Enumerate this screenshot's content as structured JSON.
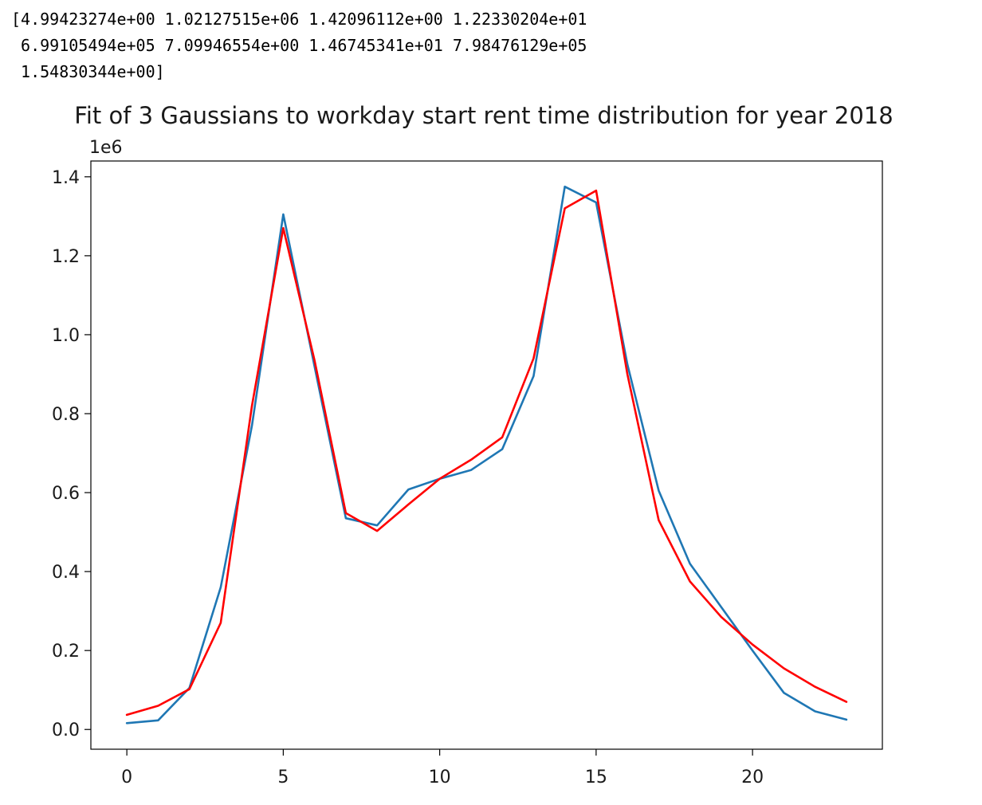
{
  "output_lines": [
    "[4.99423274e+00 1.02127515e+06 1.42096112e+00 1.22330204e+01",
    " 6.99105494e+05 7.09946554e+00 1.46745341e+01 7.98476129e+05",
    " 1.54830344e+00]"
  ],
  "chart_data": {
    "type": "line",
    "title": "Fit of 3 Gaussians to workday start rent time distribution for year 2018",
    "xlabel": "",
    "ylabel": "",
    "y_offset_label": "1e6",
    "xlim": [
      -1.15,
      24.15
    ],
    "ylim": [
      -0.05,
      1.44
    ],
    "x_ticks": [
      0,
      5,
      10,
      15,
      20
    ],
    "y_ticks": [
      0.0,
      0.2,
      0.4,
      0.6,
      0.8,
      1.0,
      1.2,
      1.4
    ],
    "y_tick_labels": [
      "0.0",
      "0.2",
      "0.4",
      "0.6",
      "0.8",
      "1.0",
      "1.2",
      "1.4"
    ],
    "grid": false,
    "x": [
      0,
      1,
      2,
      3,
      4,
      5,
      6,
      7,
      8,
      9,
      10,
      11,
      12,
      13,
      14,
      15,
      16,
      17,
      18,
      19,
      20,
      21,
      22,
      23
    ],
    "series": [
      {
        "color": "#1f77b4",
        "values": [
          0.016,
          0.023,
          0.105,
          0.36,
          0.77,
          1.305,
          0.92,
          0.535,
          0.517,
          0.608,
          0.635,
          0.657,
          0.71,
          0.895,
          1.375,
          1.335,
          0.925,
          0.605,
          0.42,
          0.31,
          0.2,
          0.093,
          0.046,
          0.025
        ]
      },
      {
        "color": "#ff0000",
        "values": [
          0.037,
          0.06,
          0.102,
          0.27,
          0.82,
          1.27,
          0.935,
          0.548,
          0.503,
          0.57,
          0.635,
          0.683,
          0.74,
          0.94,
          1.32,
          1.365,
          0.9,
          0.53,
          0.375,
          0.285,
          0.215,
          0.155,
          0.108,
          0.07
        ]
      }
    ]
  }
}
